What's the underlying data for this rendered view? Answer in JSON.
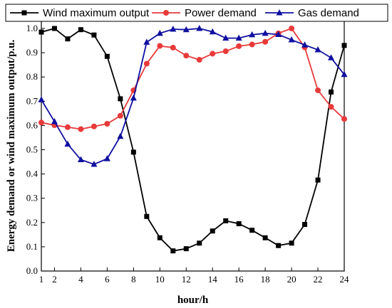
{
  "chart_data": {
    "type": "line",
    "xlabel": "hour/h",
    "ylabel": "Energy demand or wind maximum output/p.u.",
    "xlim": [
      1,
      24
    ],
    "ylim": [
      0,
      1.05
    ],
    "xticks": [
      1,
      2,
      4,
      6,
      8,
      10,
      12,
      14,
      16,
      18,
      20,
      22,
      24
    ],
    "yticks": [
      0.0,
      0.1,
      0.2,
      0.3,
      0.4,
      0.5,
      0.6,
      0.7,
      0.8,
      0.9,
      1.0
    ],
    "x": [
      1,
      2,
      3,
      4,
      5,
      6,
      7,
      8,
      9,
      10,
      11,
      12,
      13,
      14,
      15,
      16,
      17,
      18,
      19,
      20,
      21,
      22,
      23,
      24
    ],
    "legend_position": "top",
    "grid": false,
    "series": [
      {
        "name": "Wind maximum output",
        "color": "#000000",
        "marker": "square",
        "values": [
          0.985,
          1.0,
          0.957,
          0.995,
          0.973,
          0.885,
          0.71,
          0.49,
          0.225,
          0.137,
          0.083,
          0.092,
          0.115,
          0.165,
          0.207,
          0.195,
          0.168,
          0.137,
          0.105,
          0.115,
          0.192,
          0.375,
          0.738,
          0.93
        ]
      },
      {
        "name": "Power demand",
        "color": "#e83a3a",
        "marker": "circle",
        "values": [
          0.612,
          0.601,
          0.593,
          0.585,
          0.596,
          0.607,
          0.64,
          0.745,
          0.855,
          0.928,
          0.921,
          0.888,
          0.871,
          0.896,
          0.906,
          0.927,
          0.934,
          0.945,
          0.98,
          1.0,
          0.922,
          0.745,
          0.677,
          0.627
        ]
      },
      {
        "name": "Gas demand",
        "color": "#0f0fa0",
        "marker": "triangle",
        "values": [
          0.706,
          0.616,
          0.523,
          0.459,
          0.44,
          0.463,
          0.555,
          0.713,
          0.943,
          0.98,
          0.997,
          0.995,
          1.0,
          0.986,
          0.96,
          0.96,
          0.974,
          0.98,
          0.975,
          0.953,
          0.932,
          0.912,
          0.879,
          0.81
        ]
      }
    ]
  }
}
